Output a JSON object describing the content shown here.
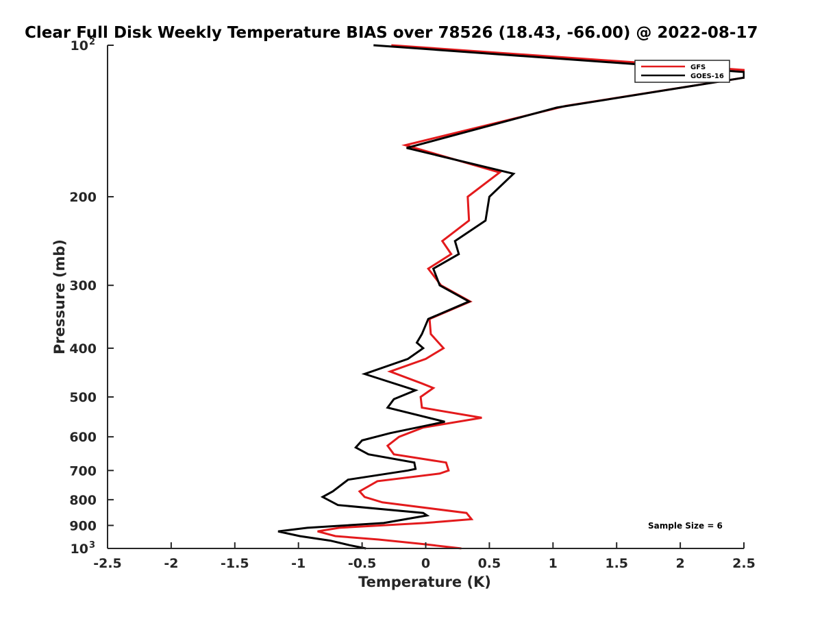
{
  "chart_data": {
    "type": "line",
    "title": "Clear Full Disk Weekly Temperature BIAS over 78526 (18.43, -66.00) @ 2022-08-17",
    "xlabel": "Temperature (K)",
    "ylabel": "Pressure (mb)",
    "xlim": [
      -2.5,
      2.5
    ],
    "ylim": [
      100,
      1000
    ],
    "y_scale": "log",
    "y_reversed": true,
    "x_ticks": [
      "-2.5",
      "-2",
      "-1.5",
      "-1",
      "-0.5",
      "0",
      "0.5",
      "1",
      "1.5",
      "2",
      "2.5"
    ],
    "x_tick_values": [
      -2.5,
      -2,
      -1.5,
      -1,
      -0.5,
      0,
      0.5,
      1,
      1.5,
      2,
      2.5
    ],
    "y_ticks": [
      {
        "value": 100,
        "base": "10",
        "exp": "2"
      },
      {
        "value": 200,
        "label": "200"
      },
      {
        "value": 300,
        "label": "300"
      },
      {
        "value": 400,
        "label": "400"
      },
      {
        "value": 500,
        "label": "500"
      },
      {
        "value": 600,
        "label": "600"
      },
      {
        "value": 700,
        "label": "700"
      },
      {
        "value": 800,
        "label": "800"
      },
      {
        "value": 900,
        "label": "900"
      },
      {
        "value": 1000,
        "base": "10",
        "exp": "3"
      }
    ],
    "grid": false,
    "legend_position": "top-right",
    "series": [
      {
        "name": "GFS",
        "color": "#e31a1c",
        "points": [
          [
            -0.27,
            100
          ],
          [
            2.5,
            112
          ],
          [
            2.5,
            116
          ],
          [
            1.1,
            132
          ],
          [
            -0.16,
            158
          ],
          [
            0.58,
            179
          ],
          [
            0.33,
            200
          ],
          [
            0.34,
            223
          ],
          [
            0.13,
            245
          ],
          [
            0.2,
            260
          ],
          [
            0.02,
            278
          ],
          [
            0.12,
            300
          ],
          [
            0.35,
            323
          ],
          [
            0.03,
            350
          ],
          [
            0.04,
            375
          ],
          [
            0.14,
            400
          ],
          [
            0.0,
            420
          ],
          [
            -0.28,
            445
          ],
          [
            -0.03,
            470
          ],
          [
            0.06,
            480
          ],
          [
            -0.04,
            500
          ],
          [
            -0.03,
            525
          ],
          [
            0.44,
            550
          ],
          [
            -0.02,
            575
          ],
          [
            -0.21,
            600
          ],
          [
            -0.3,
            625
          ],
          [
            -0.25,
            650
          ],
          [
            0.16,
            675
          ],
          [
            0.18,
            700
          ],
          [
            0.11,
            710
          ],
          [
            -0.38,
            735
          ],
          [
            -0.52,
            770
          ],
          [
            -0.48,
            790
          ],
          [
            -0.34,
            810
          ],
          [
            0.32,
            850
          ],
          [
            0.36,
            875
          ],
          [
            -0.01,
            890
          ],
          [
            -0.68,
            910
          ],
          [
            -0.85,
            925
          ],
          [
            -0.71,
            945
          ],
          [
            -0.37,
            960
          ],
          [
            -0.02,
            980
          ],
          [
            0.28,
            1000
          ]
        ]
      },
      {
        "name": "GOES-16",
        "color": "#000000",
        "points": [
          [
            -0.41,
            100
          ],
          [
            2.5,
            113
          ],
          [
            2.5,
            116
          ],
          [
            1.03,
            133
          ],
          [
            -0.15,
            160
          ],
          [
            0.69,
            180
          ],
          [
            0.5,
            200
          ],
          [
            0.47,
            223
          ],
          [
            0.23,
            245
          ],
          [
            0.26,
            260
          ],
          [
            0.06,
            278
          ],
          [
            0.11,
            300
          ],
          [
            0.34,
            323
          ],
          [
            0.02,
            350
          ],
          [
            -0.03,
            375
          ],
          [
            -0.07,
            390
          ],
          [
            -0.02,
            400
          ],
          [
            -0.14,
            420
          ],
          [
            -0.48,
            450
          ],
          [
            -0.08,
            485
          ],
          [
            -0.25,
            505
          ],
          [
            -0.3,
            525
          ],
          [
            0.15,
            560
          ],
          [
            -0.28,
            590
          ],
          [
            -0.5,
            610
          ],
          [
            -0.55,
            630
          ],
          [
            -0.45,
            650
          ],
          [
            -0.09,
            675
          ],
          [
            -0.08,
            695
          ],
          [
            -0.14,
            700
          ],
          [
            -0.61,
            730
          ],
          [
            -0.73,
            770
          ],
          [
            -0.81,
            790
          ],
          [
            -0.69,
            820
          ],
          [
            -0.02,
            850
          ],
          [
            0.01,
            860
          ],
          [
            -0.33,
            890
          ],
          [
            -0.93,
            910
          ],
          [
            -1.16,
            925
          ],
          [
            -0.99,
            945
          ],
          [
            -0.75,
            965
          ],
          [
            -0.6,
            985
          ],
          [
            -0.47,
            1000
          ]
        ]
      }
    ],
    "annotation": "Sample Size = 6"
  }
}
